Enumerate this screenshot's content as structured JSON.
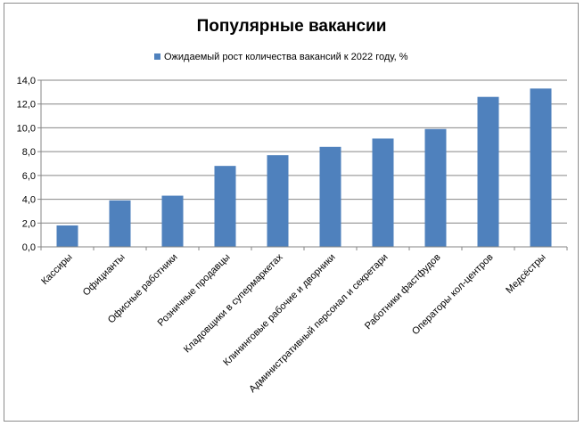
{
  "chart_data": {
    "type": "bar",
    "title": "Популярные вакансии",
    "legend_position": "top",
    "series": [
      {
        "name": "Ожидаемый рост количества вакансий к 2022 году, %",
        "color": "#4f81bd",
        "values": [
          1.8,
          3.9,
          4.3,
          6.8,
          7.7,
          8.4,
          9.1,
          9.9,
          12.6,
          13.3
        ]
      }
    ],
    "categories": [
      "Кассиры",
      "Официанты",
      "Офисные работники",
      "Розничные продавцы",
      "Кладовщики в супермаркетах",
      "Клининговые рабочие и дворники",
      "Административный персонал и секретари",
      "Работники фастфудов",
      "Операторы кол-центров",
      "Медсёстры"
    ],
    "y_ticks": [
      "0,0",
      "2,0",
      "4,0",
      "6,0",
      "8,0",
      "10,0",
      "12,0",
      "14,0"
    ],
    "ylim": [
      0,
      14
    ],
    "grid": true
  }
}
